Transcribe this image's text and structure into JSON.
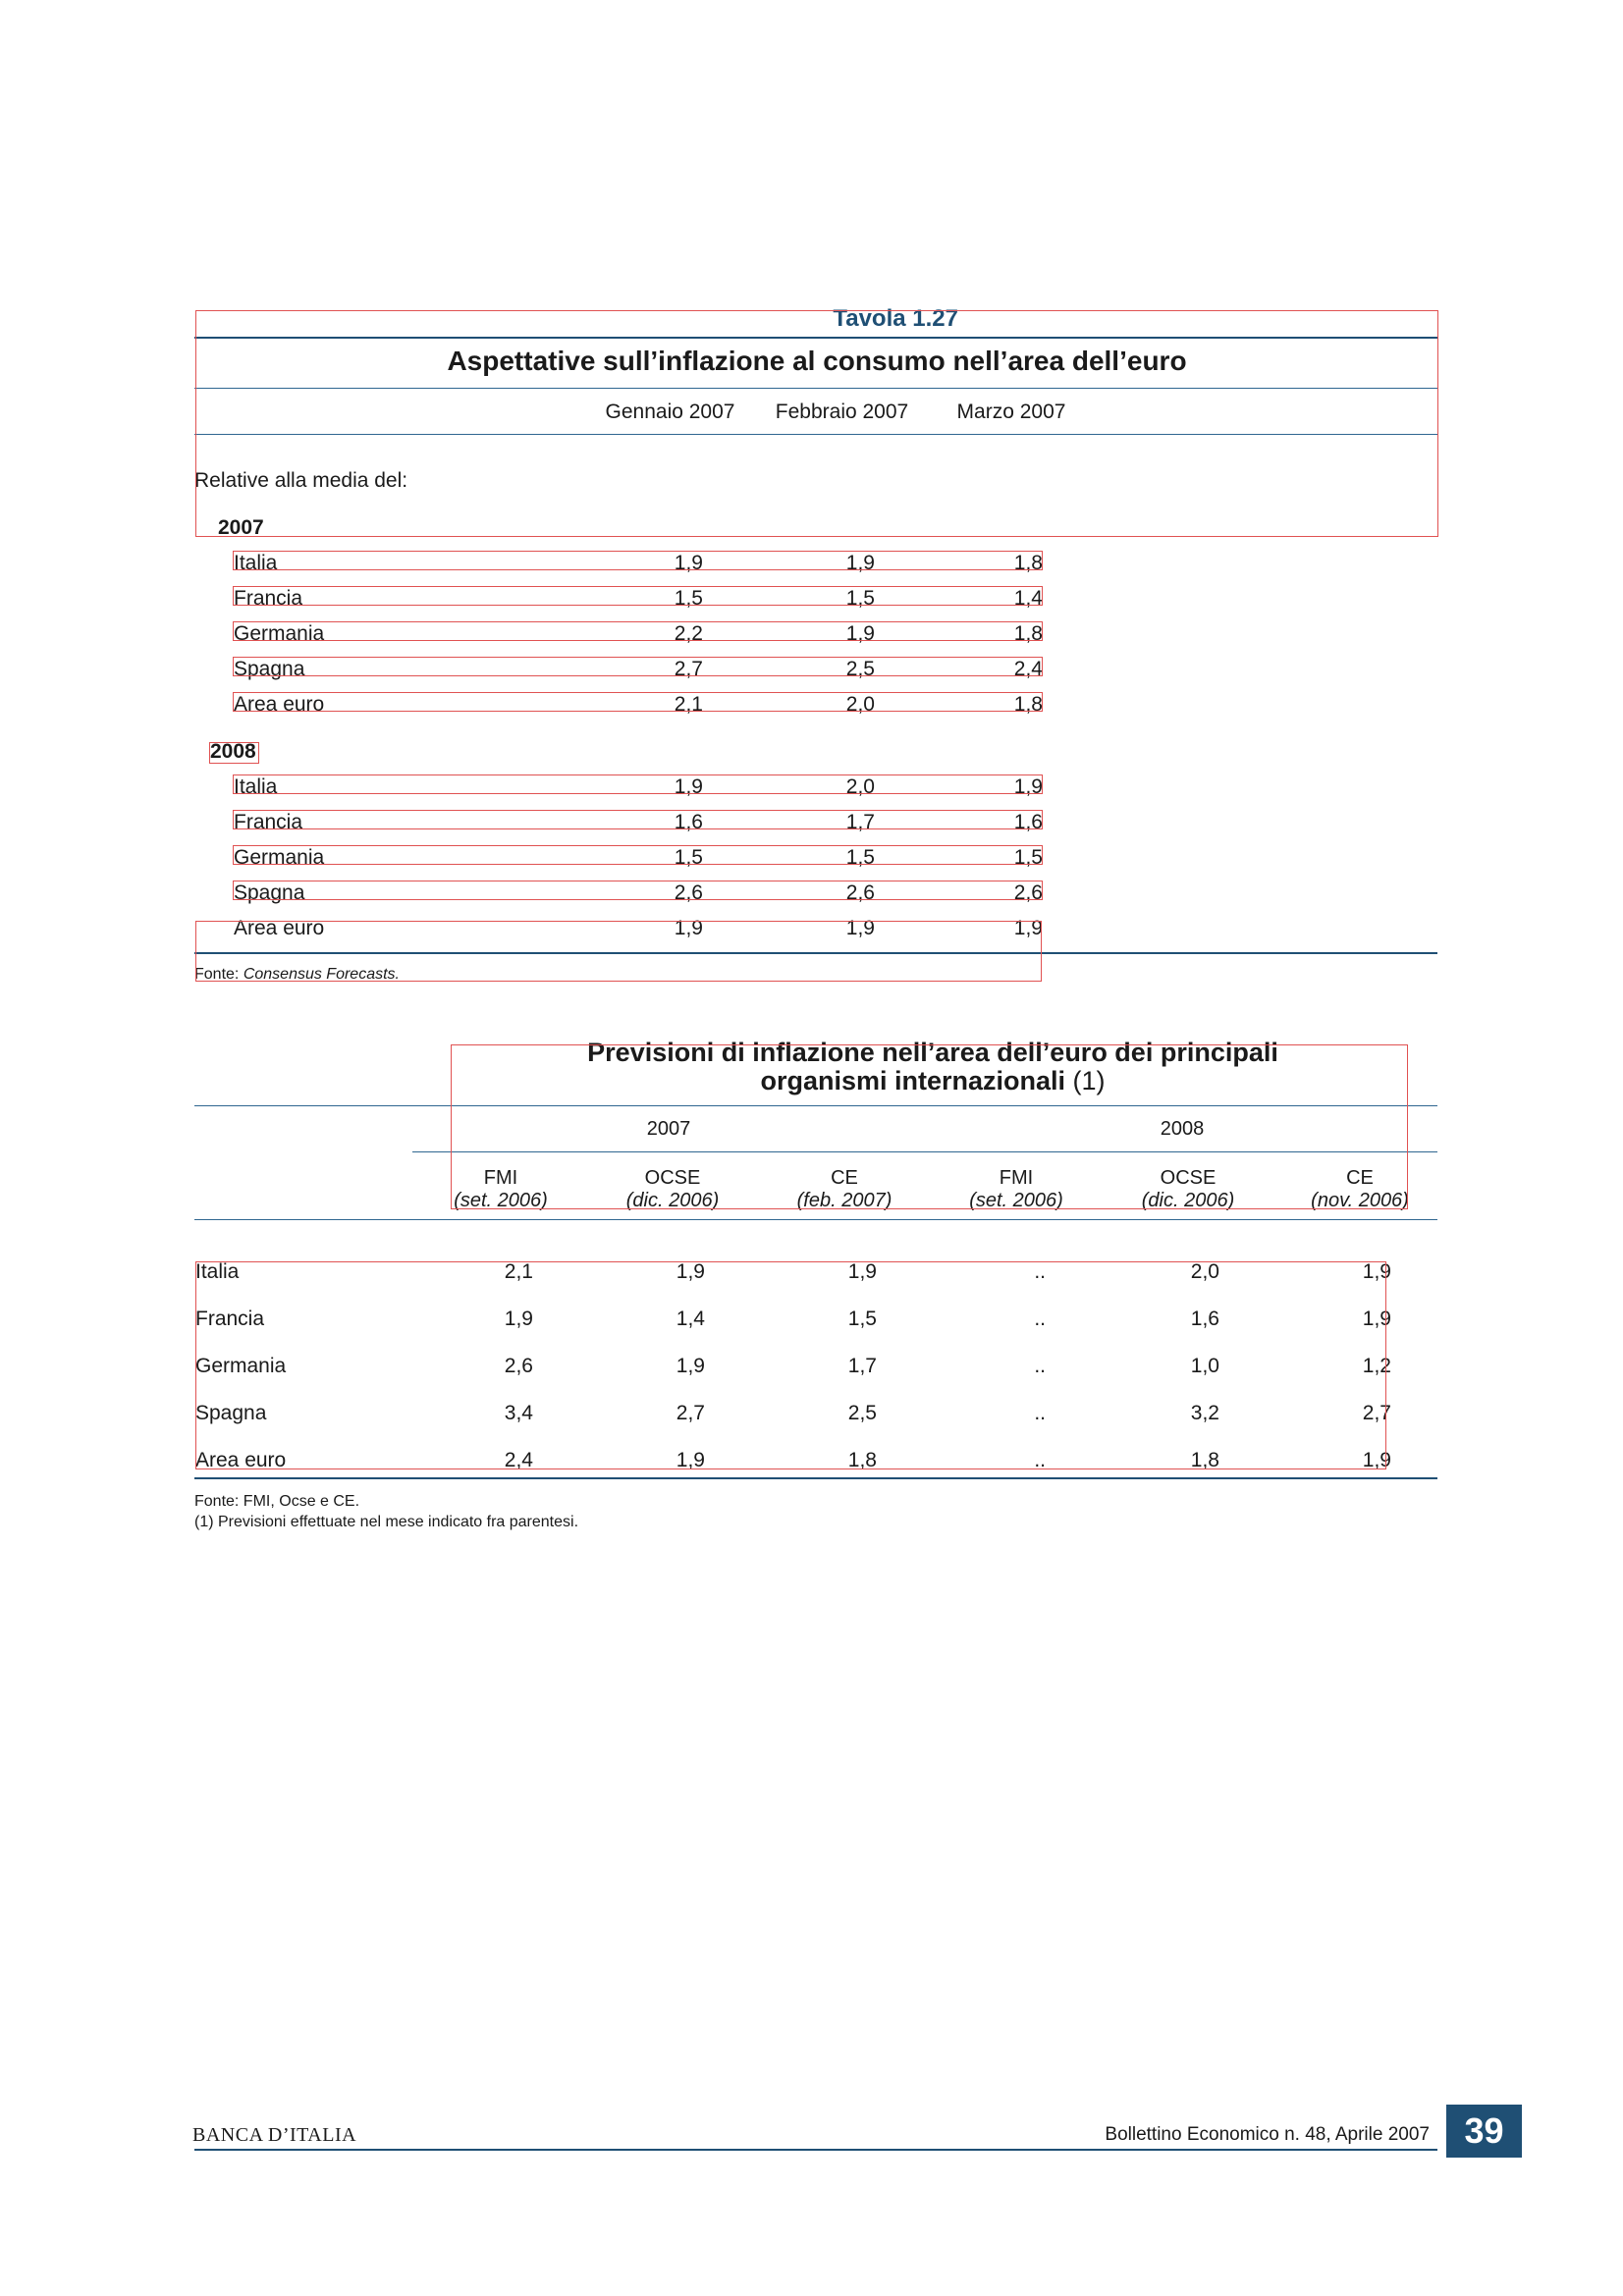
{
  "table1": {
    "tavola": "Tavola 1.27",
    "title": "Aspettative sull’inflazione al consumo nell’area dell’euro",
    "columns": [
      "Gennaio 2007",
      "Febbraio 2007",
      "Marzo 2007"
    ],
    "intro": "Relative alla media del:",
    "groups": [
      {
        "year": "2007",
        "rows": [
          {
            "label": "Italia",
            "values": [
              "1,9",
              "1,9",
              "1,8"
            ]
          },
          {
            "label": "Francia",
            "values": [
              "1,5",
              "1,5",
              "1,4"
            ]
          },
          {
            "label": "Germania",
            "values": [
              "2,2",
              "1,9",
              "1,8"
            ]
          },
          {
            "label": "Spagna",
            "values": [
              "2,7",
              "2,5",
              "2,4"
            ]
          },
          {
            "label": "Area euro",
            "values": [
              "2,1",
              "2,0",
              "1,8"
            ]
          }
        ]
      },
      {
        "year": "2008",
        "rows": [
          {
            "label": "Italia",
            "values": [
              "1,9",
              "2,0",
              "1,9"
            ]
          },
          {
            "label": "Francia",
            "values": [
              "1,6",
              "1,7",
              "1,6"
            ]
          },
          {
            "label": "Germania",
            "values": [
              "1,5",
              "1,5",
              "1,5"
            ]
          },
          {
            "label": "Spagna",
            "values": [
              "2,6",
              "2,6",
              "2,6"
            ]
          },
          {
            "label": "Area euro",
            "values": [
              "1,9",
              "1,9",
              "1,9"
            ]
          }
        ]
      }
    ],
    "source_prefix": "Fonte: ",
    "source_name": "Consensus Forecasts."
  },
  "table2": {
    "title_line1": "Previsioni di inflazione nell’area dell’euro dei principali",
    "title_line2": "organismi internazionali",
    "title_note": " (1)",
    "years": [
      "2007",
      "2008"
    ],
    "orgs": [
      {
        "name": "FMI",
        "date": "(set. 2006)"
      },
      {
        "name": "OCSE",
        "date": "(dic. 2006)"
      },
      {
        "name": "CE",
        "date": "(feb.  2007)"
      },
      {
        "name": "FMI",
        "date": "(set. 2006)"
      },
      {
        "name": "OCSE",
        "date": "(dic. 2006)"
      },
      {
        "name": "CE",
        "date": "(nov.  2006)"
      }
    ],
    "rows": [
      {
        "label": "Italia",
        "values": [
          "2,1",
          "1,9",
          "1,9",
          "..",
          "2,0",
          "1,9"
        ]
      },
      {
        "label": "Francia",
        "values": [
          "1,9",
          "1,4",
          "1,5",
          "..",
          "1,6",
          "1,9"
        ]
      },
      {
        "label": "Germania",
        "values": [
          "2,6",
          "1,9",
          "1,7",
          "..",
          "1,0",
          "1,2"
        ]
      },
      {
        "label": "Spagna",
        "values": [
          "3,4",
          "2,7",
          "2,5",
          "..",
          "3,2",
          "2,7"
        ]
      },
      {
        "label": "Area euro",
        "values": [
          "2,4",
          "1,9",
          "1,8",
          "..",
          "1,8",
          "1,9"
        ]
      }
    ],
    "notes": [
      "Fonte: FMI, Ocse e CE.",
      "(1) Previsioni effettuate nel mese indicato fra parentesi."
    ]
  },
  "footer": {
    "left": "BANCA D’ITALIA",
    "right": "Bollettino Economico n. 48, Aprile 2007",
    "page": "39"
  }
}
